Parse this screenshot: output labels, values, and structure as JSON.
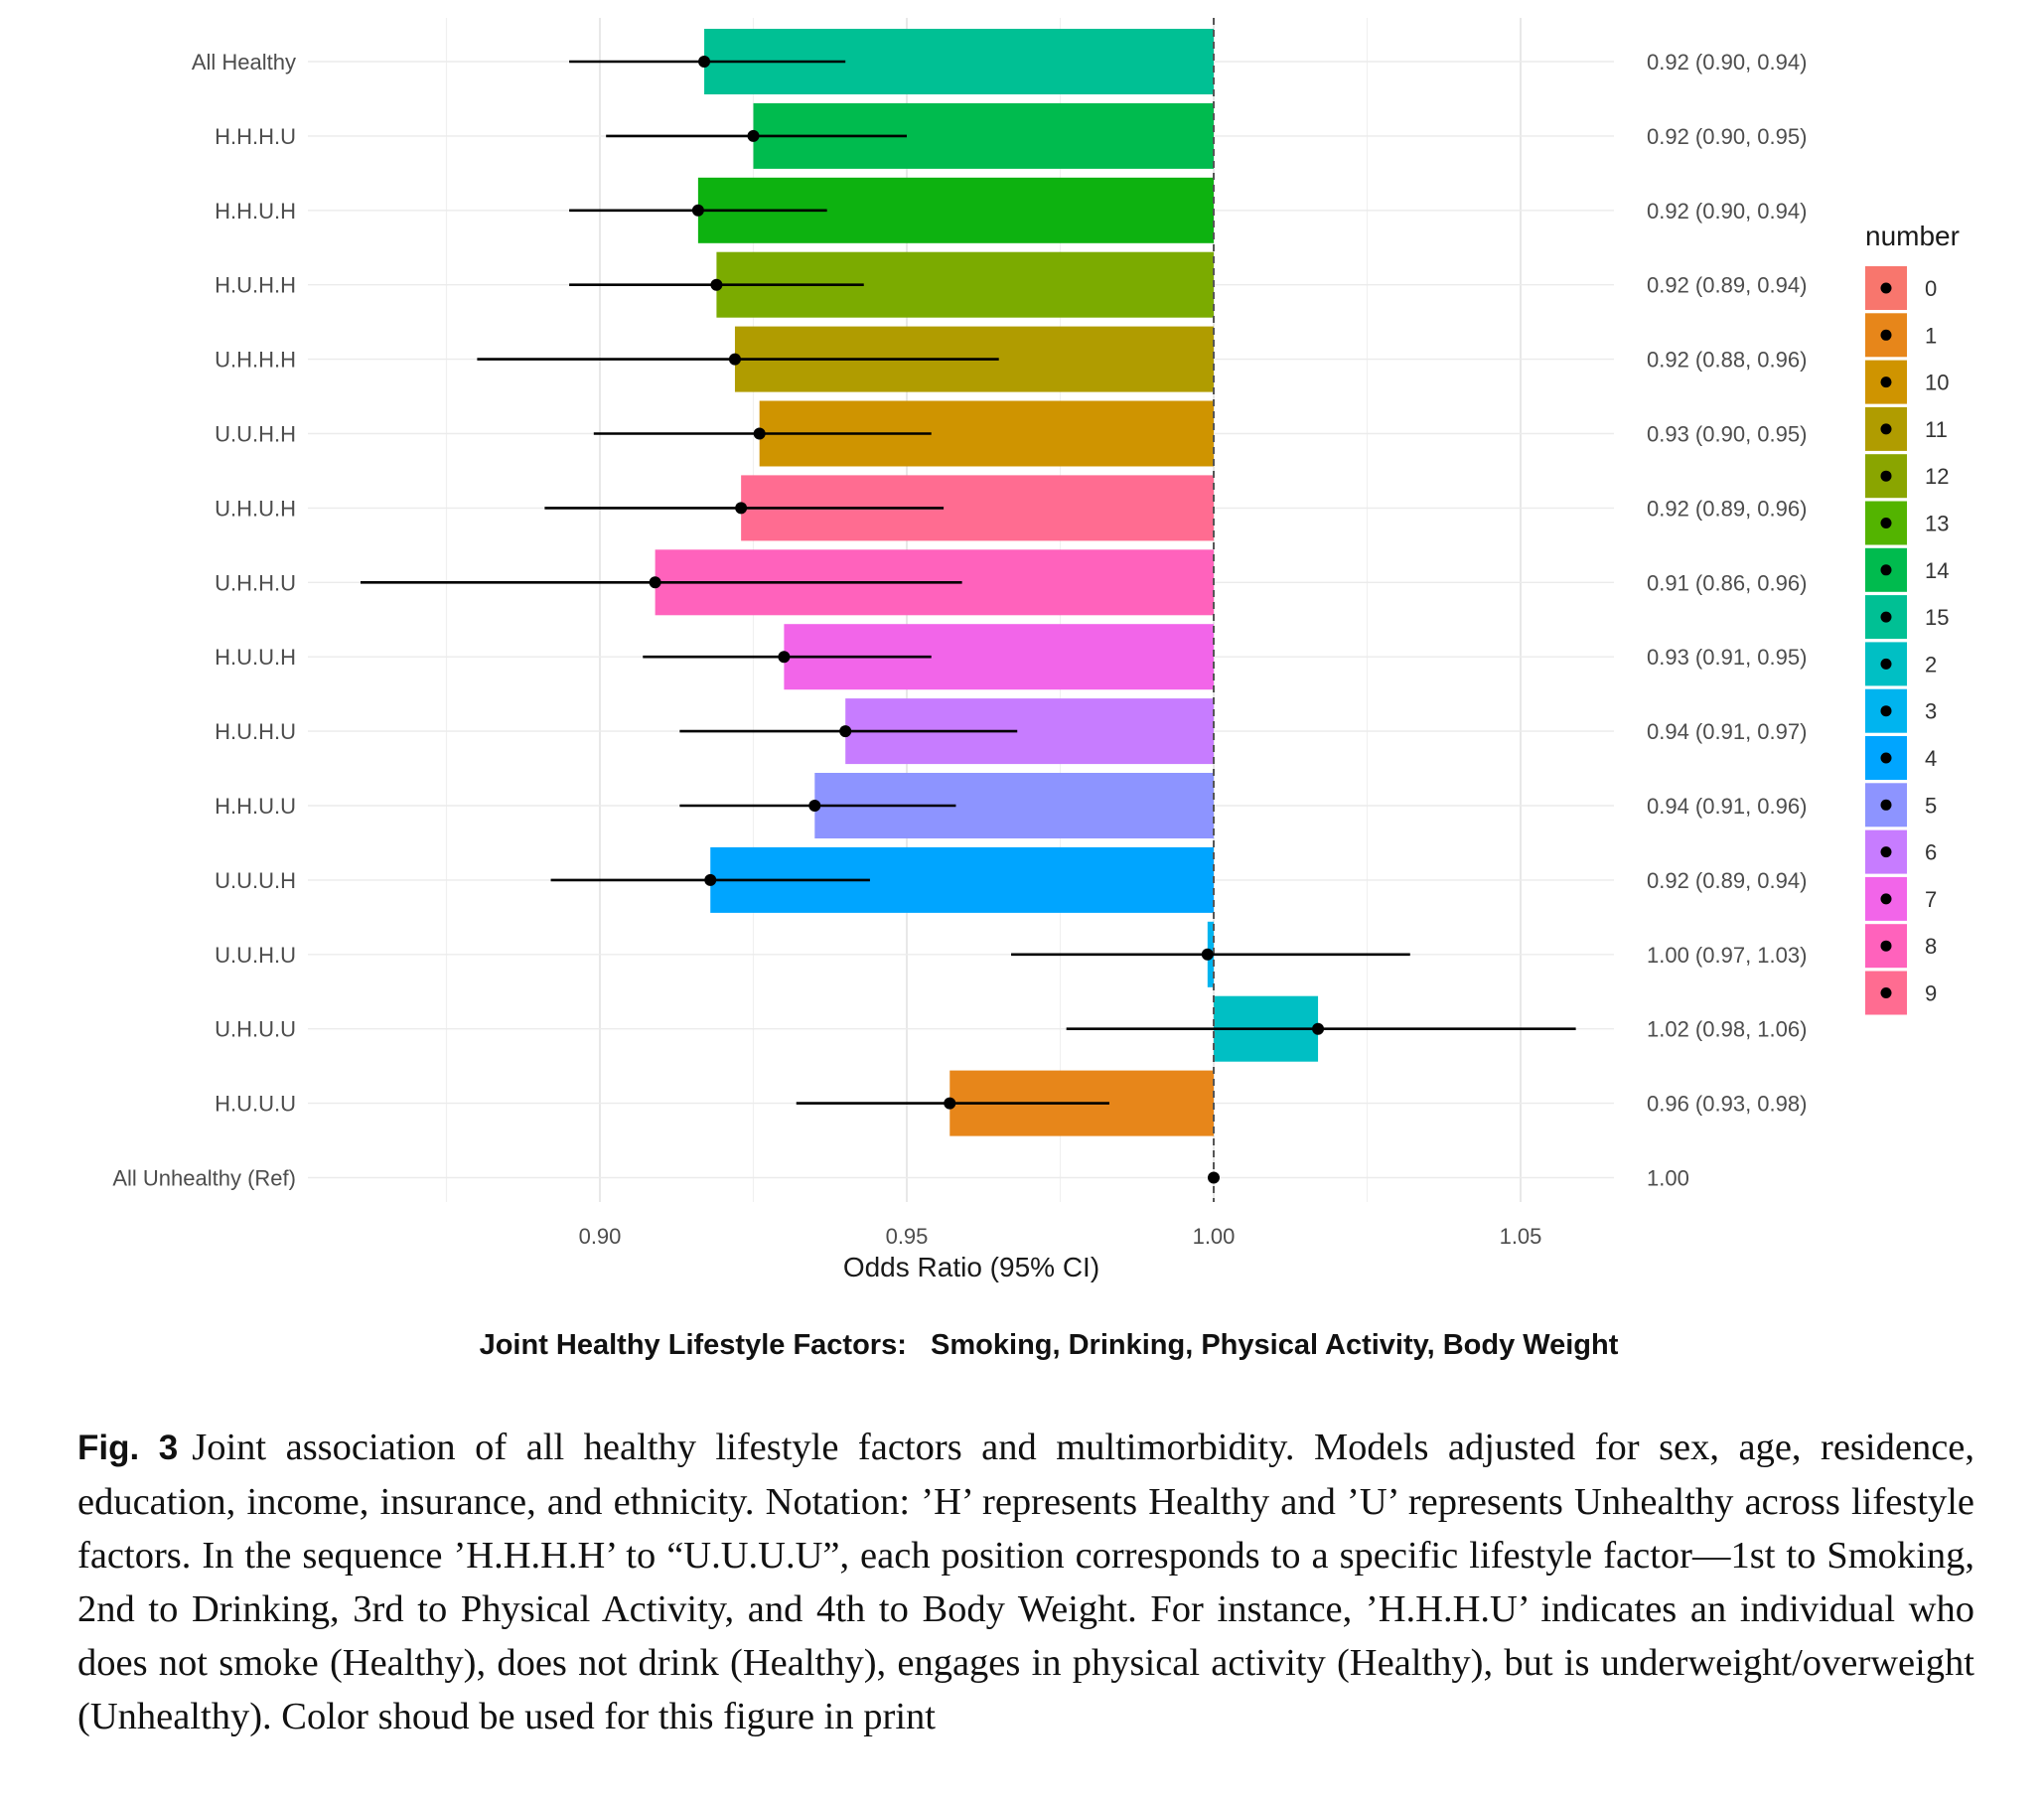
{
  "chart_data": {
    "type": "bar",
    "orientation": "horizontal",
    "reference_line": 1.0,
    "xlabel": "Odds Ratio (95% CI)",
    "title_bottom": "Joint Healthy Lifestyle Factors:   Smoking, Drinking, Physical Activity, Body Weight",
    "xlim": [
      0.854,
      1.066
    ],
    "x_ticks": [
      "0.90",
      "0.95",
      "1.00",
      "1.05"
    ],
    "x_tick_values": [
      0.9,
      0.95,
      1.0,
      1.05
    ],
    "grid": true,
    "legend": {
      "title": "number",
      "placement": "right",
      "entries": [
        "0",
        "1",
        "10",
        "11",
        "12",
        "13",
        "14",
        "15",
        "2",
        "3",
        "4",
        "5",
        "6",
        "7",
        "8",
        "9"
      ],
      "colors": [
        "#F8766D",
        "#E7861A",
        "#CF9400",
        "#B09C00",
        "#8AA500",
        "#53B400",
        "#00BB4E",
        "#00C094",
        "#00BFC4",
        "#00B4EF",
        "#00A5FF",
        "#8D94FF",
        "#C77CFF",
        "#F265E9",
        "#FF62BC",
        "#FF6C91"
      ]
    },
    "rows": [
      {
        "label": "All Healthy",
        "or": 0.917,
        "lo": 0.895,
        "hi": 0.94,
        "text": "0.92 (0.90, 0.94)",
        "color": "#00C094",
        "bar": true
      },
      {
        "label": "H.H.H.U",
        "or": 0.925,
        "lo": 0.901,
        "hi": 0.95,
        "text": "0.92 (0.90, 0.95)",
        "color": "#00BB4E",
        "bar": true
      },
      {
        "label": "H.H.U.H",
        "or": 0.916,
        "lo": 0.895,
        "hi": 0.937,
        "text": "0.92 (0.90, 0.94)",
        "color": "#0DB210",
        "bar": true
      },
      {
        "label": "H.U.H.H",
        "or": 0.919,
        "lo": 0.895,
        "hi": 0.943,
        "text": "0.92 (0.89, 0.94)",
        "color": "#7BAB00",
        "bar": true
      },
      {
        "label": "U.H.H.H",
        "or": 0.922,
        "lo": 0.88,
        "hi": 0.965,
        "text": "0.92 (0.88, 0.96)",
        "color": "#B09C00",
        "bar": true
      },
      {
        "label": "U.U.H.H",
        "or": 0.926,
        "lo": 0.899,
        "hi": 0.954,
        "text": "0.93 (0.90, 0.95)",
        "color": "#CF9400",
        "bar": true
      },
      {
        "label": "U.H.U.H",
        "or": 0.923,
        "lo": 0.891,
        "hi": 0.956,
        "text": "0.92 (0.89, 0.96)",
        "color": "#FF6C91",
        "bar": true
      },
      {
        "label": "U.H.H.U",
        "or": 0.909,
        "lo": 0.861,
        "hi": 0.959,
        "text": "0.91 (0.86, 0.96)",
        "color": "#FF62BC",
        "bar": true
      },
      {
        "label": "H.U.U.H",
        "or": 0.93,
        "lo": 0.907,
        "hi": 0.954,
        "text": "0.93 (0.91, 0.95)",
        "color": "#F265E9",
        "bar": true
      },
      {
        "label": "H.U.H.U",
        "or": 0.94,
        "lo": 0.913,
        "hi": 0.968,
        "text": "0.94 (0.91, 0.97)",
        "color": "#C77CFF",
        "bar": true
      },
      {
        "label": "H.H.U.U",
        "or": 0.935,
        "lo": 0.913,
        "hi": 0.958,
        "text": "0.94 (0.91, 0.96)",
        "color": "#8D94FF",
        "bar": true
      },
      {
        "label": "U.U.U.H",
        "or": 0.918,
        "lo": 0.892,
        "hi": 0.944,
        "text": "0.92 (0.89, 0.94)",
        "color": "#00A5FF",
        "bar": true
      },
      {
        "label": "U.U.H.U",
        "or": 0.999,
        "lo": 0.967,
        "hi": 1.032,
        "text": "1.00 (0.97, 1.03)",
        "color": "#00B4EF",
        "bar": true
      },
      {
        "label": "U.H.U.U",
        "or": 1.017,
        "lo": 0.976,
        "hi": 1.059,
        "text": "1.02 (0.98, 1.06)",
        "color": "#00BFC4",
        "bar": true
      },
      {
        "label": "H.U.U.U",
        "or": 0.957,
        "lo": 0.932,
        "hi": 0.983,
        "text": "0.96 (0.93, 0.98)",
        "color": "#E7861A",
        "bar": true
      },
      {
        "label": "All Unhealthy (Ref)",
        "or": 1.0,
        "lo": 1.0,
        "hi": 1.0,
        "text": "1.00",
        "color": "#F8766D",
        "bar": false
      }
    ]
  },
  "caption": {
    "label": "Fig. 3",
    "text": "Joint association of all healthy lifestyle factors and multimorbidity. Models adjusted for sex, age, residence, education, income, insurance, and ethnicity. Notation: ’H’ represents Healthy and ’U’ represents Unhealthy across lifestyle factors. In the sequence ’H.H.H.H’ to “U.U.U.U”, each position corresponds to a specific lifestyle factor—1st to Smoking, 2nd to Drinking, 3rd to Physical Activity, and 4th to Body Weight. For instance, ’H.H.H.U’ indicates an individual who does not smoke (Healthy), does not drink (Healthy), engages in physical activity (Healthy), but is underweight/overweight (Unhealthy). Color shoud be used for this figure in print"
  }
}
